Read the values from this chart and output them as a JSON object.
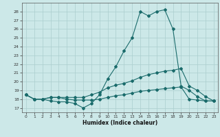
{
  "xlabel": "Humidex (Indice chaleur)",
  "bg_color": "#cce8e8",
  "grid_color": "#b8d8d8",
  "line_color": "#1a6b6b",
  "xlim": [
    -0.5,
    23.5
  ],
  "ylim": [
    16.5,
    29.0
  ],
  "xticks": [
    0,
    1,
    2,
    3,
    4,
    5,
    6,
    7,
    8,
    9,
    10,
    11,
    12,
    13,
    14,
    15,
    16,
    17,
    18,
    19,
    20,
    21,
    22,
    23
  ],
  "yticks": [
    17,
    18,
    19,
    20,
    21,
    22,
    23,
    24,
    25,
    26,
    27,
    28
  ],
  "curve1_x": [
    0,
    1,
    2,
    3,
    4,
    5,
    6,
    7,
    8,
    9,
    10,
    11,
    12,
    13,
    14,
    15,
    16,
    17,
    18,
    19,
    20,
    21,
    22,
    23
  ],
  "curve1_y": [
    18.5,
    18.0,
    18.0,
    17.8,
    17.7,
    17.7,
    17.5,
    17.0,
    17.5,
    18.5,
    20.3,
    21.7,
    23.5,
    25.0,
    28.0,
    27.5,
    28.0,
    28.2,
    26.0,
    19.5,
    19.0,
    18.3,
    17.8,
    17.8
  ],
  "curve2_x": [
    0,
    1,
    2,
    3,
    4,
    5,
    6,
    7,
    8,
    9,
    10,
    11,
    12,
    13,
    14,
    15,
    16,
    17,
    18,
    19,
    20,
    21,
    22,
    23
  ],
  "curve2_y": [
    18.5,
    18.0,
    18.0,
    18.2,
    18.2,
    18.2,
    18.2,
    18.2,
    18.5,
    18.8,
    19.3,
    19.6,
    19.8,
    20.1,
    20.5,
    20.8,
    21.0,
    21.2,
    21.3,
    21.5,
    19.5,
    19.0,
    18.3,
    17.8
  ],
  "curve3_x": [
    0,
    1,
    2,
    3,
    4,
    5,
    6,
    7,
    8,
    9,
    10,
    11,
    12,
    13,
    14,
    15,
    16,
    17,
    18,
    19,
    20,
    21,
    22,
    23
  ],
  "curve3_y": [
    18.5,
    18.0,
    18.0,
    18.2,
    18.2,
    18.0,
    17.9,
    17.9,
    17.9,
    18.0,
    18.2,
    18.4,
    18.5,
    18.7,
    18.9,
    19.0,
    19.1,
    19.2,
    19.3,
    19.4,
    18.0,
    17.9,
    17.8,
    17.8
  ]
}
